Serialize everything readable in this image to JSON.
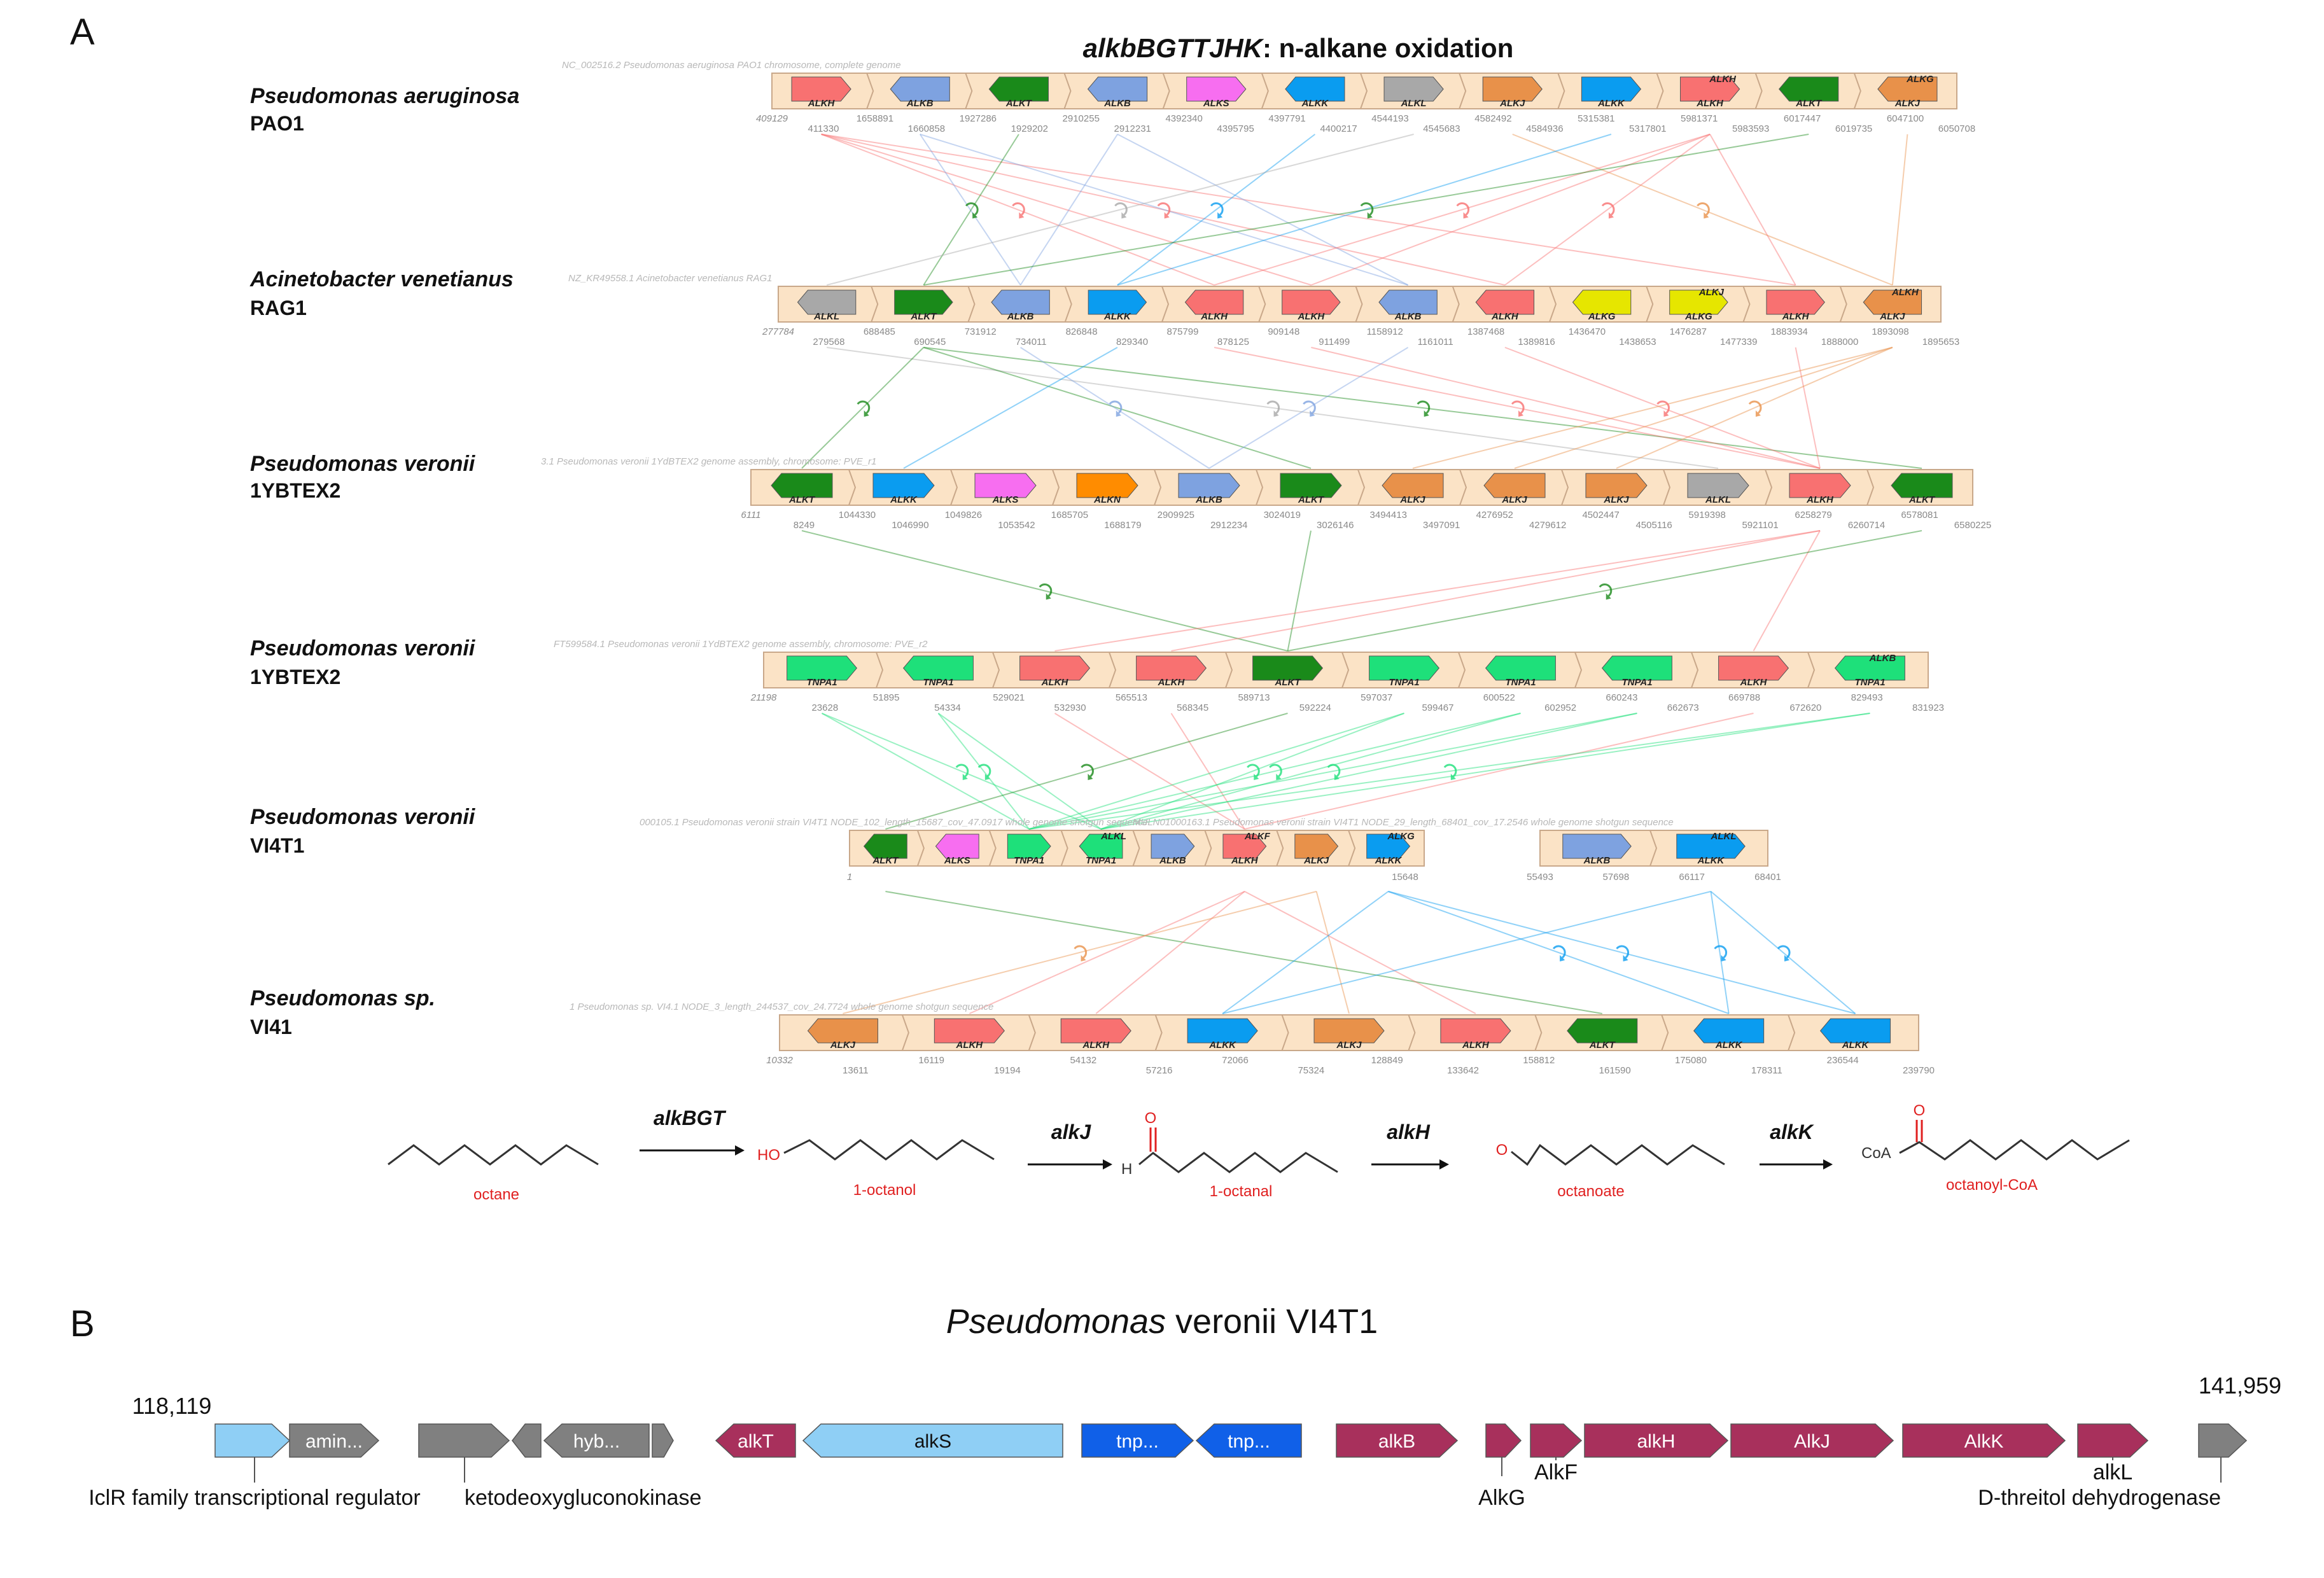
{
  "panel_a": {
    "label": "A",
    "title_italic": "alkbBGTTJHK",
    "title_rest": ":  n-alkane oxidation",
    "tracks": [
      {
        "org": "Pseudomonas aeruginosa",
        "strain": "PAO1",
        "accession": "NC_002516.2 Pseudomonas aeruginosa PAO1 chromosome, complete genome",
        "genes": [
          {
            "label": "ALKH",
            "color": "#f87171",
            "dir": "right"
          },
          {
            "label": "ALKB",
            "color": "#7ea2e0",
            "dir": "left"
          },
          {
            "label": "ALKT",
            "color": "#1a8a1a",
            "dir": "left"
          },
          {
            "label": "ALKB",
            "color": "#7ea2e0",
            "dir": "left"
          },
          {
            "label": "ALKS",
            "color": "#f76ef0",
            "dir": "right"
          },
          {
            "label": "ALKK",
            "color": "#0a9cf0",
            "dir": "left"
          },
          {
            "label": "ALKL",
            "color": "#a8a8a8",
            "dir": "right"
          },
          {
            "label": "ALKJ",
            "color": "#e8914a",
            "dir": "right"
          },
          {
            "label": "ALKK",
            "color": "#0a9cf0",
            "dir": "right"
          },
          {
            "label": "ALKH",
            "color": "#f87171",
            "dir": "right"
          },
          {
            "label": "ALKT",
            "color": "#1a8a1a",
            "dir": "left"
          },
          {
            "label": "ALKJ",
            "color": "#e8914a",
            "dir": "left"
          }
        ],
        "extra": [
          {
            "label": "ALKG"
          },
          {
            "label": "ALKH"
          }
        ],
        "coords": [
          "409129",
          "411330",
          "1658891",
          "1660858",
          "1927286",
          "1929202",
          "2910255",
          "2912231",
          "4392340",
          "4395795",
          "4397791",
          "4400217",
          "4544193",
          "4545683",
          "4582492",
          "4584936",
          "5315381",
          "5317801",
          "5981371",
          "5983593",
          "6017447",
          "6019735",
          "6047100",
          "6050708"
        ]
      },
      {
        "org": "Acinetobacter venetianus",
        "strain": "RAG1",
        "accession": "NZ_KR49558.1 Acinetobacter venetianus RAG1",
        "genes": [
          {
            "label": "ALKL",
            "color": "#a8a8a8",
            "dir": "left"
          },
          {
            "label": "ALKT",
            "color": "#1a8a1a",
            "dir": "right"
          },
          {
            "label": "ALKB",
            "color": "#7ea2e0",
            "dir": "left"
          },
          {
            "label": "ALKK",
            "color": "#0a9cf0",
            "dir": "right"
          },
          {
            "label": "ALKH",
            "color": "#f87171",
            "dir": "left"
          },
          {
            "label": "ALKH",
            "color": "#f87171",
            "dir": "right"
          },
          {
            "label": "ALKB",
            "color": "#7ea2e0",
            "dir": "left"
          },
          {
            "label": "ALKH",
            "color": "#f87171",
            "dir": "left"
          },
          {
            "label": "ALKG",
            "color": "#e6e600",
            "dir": "left"
          },
          {
            "label": "ALKG",
            "color": "#e6e600",
            "dir": "right"
          },
          {
            "label": "ALKH",
            "color": "#f87171",
            "dir": "right"
          },
          {
            "label": "ALKJ",
            "color": "#e8914a",
            "dir": "left"
          }
        ],
        "extra": [
          {
            "label": "ALKH"
          },
          {
            "label": "ALKJ"
          }
        ],
        "coords": [
          "277784",
          "279568",
          "688485",
          "690545",
          "731912",
          "734011",
          "826848",
          "829340",
          "875799",
          "878125",
          "909148",
          "911499",
          "1158912",
          "1161011",
          "1387468",
          "1389816",
          "1436470",
          "1438653",
          "1476287",
          "1477339",
          "1883934",
          "1888000",
          "1893098",
          "1895653"
        ]
      },
      {
        "org": "Pseudomonas veronii",
        "strain": "1YBTEX2",
        "accession": "3.1 Pseudomonas veronii 1YdBTEX2 genome assembly, chromosome: PVE_r1",
        "genes": [
          {
            "label": "ALKT",
            "color": "#1a8a1a",
            "dir": "left"
          },
          {
            "label": "ALKK",
            "color": "#0a9cf0",
            "dir": "right"
          },
          {
            "label": "ALKS",
            "color": "#f76ef0",
            "dir": "right"
          },
          {
            "label": "ALKN",
            "color": "#ff8c00",
            "dir": "right"
          },
          {
            "label": "ALKB",
            "color": "#7ea2e0",
            "dir": "right"
          },
          {
            "label": "ALKT",
            "color": "#1a8a1a",
            "dir": "right"
          },
          {
            "label": "ALKJ",
            "color": "#e8914a",
            "dir": "left"
          },
          {
            "label": "ALKJ",
            "color": "#e8914a",
            "dir": "left"
          },
          {
            "label": "ALKJ",
            "color": "#e8914a",
            "dir": "right"
          },
          {
            "label": "ALKL",
            "color": "#a8a8a8",
            "dir": "right"
          },
          {
            "label": "ALKH",
            "color": "#f87171",
            "dir": "right"
          },
          {
            "label": "ALKT",
            "color": "#1a8a1a",
            "dir": "left"
          }
        ],
        "extra": [],
        "coords": [
          "6111",
          "8249",
          "1044330",
          "1046990",
          "1049826",
          "1053542",
          "1685705",
          "1688179",
          "2909925",
          "2912234",
          "3024019",
          "3026146",
          "3494413",
          "3497091",
          "4276952",
          "4279612",
          "4502447",
          "4505116",
          "5919398",
          "5921101",
          "6258279",
          "6260714",
          "6578081",
          "6580225"
        ]
      },
      {
        "org": "Pseudomonas veronii",
        "strain": "1YBTEX2",
        "accession": "FT599584.1 Pseudomonas veronii 1YdBTEX2 genome assembly, chromosome: PVE_r2",
        "genes": [
          {
            "label": "TNPA1",
            "color": "#1ee07a",
            "dir": "right"
          },
          {
            "label": "TNPA1",
            "color": "#1ee07a",
            "dir": "left"
          },
          {
            "label": "ALKH",
            "color": "#f87171",
            "dir": "right"
          },
          {
            "label": "ALKH",
            "color": "#f87171",
            "dir": "right"
          },
          {
            "label": "ALKT",
            "color": "#1a8a1a",
            "dir": "right"
          },
          {
            "label": "TNPA1",
            "color": "#1ee07a",
            "dir": "right"
          },
          {
            "label": "TNPA1",
            "color": "#1ee07a",
            "dir": "left"
          },
          {
            "label": "TNPA1",
            "color": "#1ee07a",
            "dir": "left"
          },
          {
            "label": "ALKH",
            "color": "#f87171",
            "dir": "right"
          },
          {
            "label": "TNPA1",
            "color": "#1ee07a",
            "dir": "left"
          }
        ],
        "extra": [
          {
            "label": "ALKB"
          }
        ],
        "coords": [
          "21198",
          "23628",
          "51895",
          "54334",
          "529021",
          "532930",
          "565513",
          "568345",
          "589713",
          "592224",
          "597037",
          "599467",
          "600522",
          "602952",
          "660243",
          "662673",
          "669788",
          "672620",
          "829493",
          "831923"
        ]
      },
      {
        "org": "Pseudomonas veronii",
        "strain": "VI4T1",
        "accession": "000105.1 Pseudomonas veronii strain VI4T1 NODE_102_length_15687_cov_47.0917 whole genome shotgun sequence",
        "accession2": "MULN01000163.1 Pseudomonas veronii strain VI4T1 NODE_29_length_68401_cov_17.2546 whole genome shotgun sequence",
        "genes": [
          {
            "label": "ALKT",
            "color": "#1a8a1a",
            "dir": "left"
          },
          {
            "label": "ALKS",
            "color": "#f76ef0",
            "dir": "left"
          },
          {
            "label": "TNPA1",
            "color": "#1ee07a",
            "dir": "right"
          },
          {
            "label": "TNPA1",
            "color": "#1ee07a",
            "dir": "left"
          },
          {
            "label": "ALKB",
            "color": "#7ea2e0",
            "dir": "right"
          },
          {
            "label": "ALKH",
            "color": "#f87171",
            "dir": "right"
          },
          {
            "label": "ALKJ",
            "color": "#e8914a",
            "dir": "right"
          },
          {
            "label": "ALKK",
            "color": "#0a9cf0",
            "dir": "right"
          },
          {
            "label": "ALKB",
            "color": "#7ea2e0",
            "dir": "right"
          },
          {
            "label": "ALKK",
            "color": "#0a9cf0",
            "dir": "right"
          }
        ],
        "extra": [
          {
            "label": "ALKL"
          },
          {
            "label": "ALKG"
          },
          {
            "label": "ALKF"
          },
          {
            "label": "ALKL"
          }
        ],
        "coords": [
          "1",
          "15648",
          "55493",
          "57698",
          "66117",
          "68401"
        ]
      },
      {
        "org": "Pseudomonas sp.",
        "strain": "VI41",
        "accession": "1 Pseudomonas sp. VI4.1 NODE_3_length_244537_cov_24.7724 whole genome shotgun sequence",
        "genes": [
          {
            "label": "ALKJ",
            "color": "#e8914a",
            "dir": "left"
          },
          {
            "label": "ALKH",
            "color": "#f87171",
            "dir": "right"
          },
          {
            "label": "ALKH",
            "color": "#f87171",
            "dir": "right"
          },
          {
            "label": "ALKK",
            "color": "#0a9cf0",
            "dir": "right"
          },
          {
            "label": "ALKJ",
            "color": "#e8914a",
            "dir": "right"
          },
          {
            "label": "ALKH",
            "color": "#f87171",
            "dir": "right"
          },
          {
            "label": "ALKT",
            "color": "#1a8a1a",
            "dir": "left"
          },
          {
            "label": "ALKK",
            "color": "#0a9cf0",
            "dir": "left"
          },
          {
            "label": "ALKK",
            "color": "#0a9cf0",
            "dir": "left"
          }
        ],
        "extra": [],
        "coords": [
          "10332",
          "13611",
          "16119",
          "19194",
          "54132",
          "57216",
          "72066",
          "75324",
          "128849",
          "133642",
          "158812",
          "161590",
          "175080",
          "178311",
          "236544",
          "239790"
        ]
      }
    ],
    "pathway": {
      "compounds": [
        "octane",
        "1-octanol",
        "1-octanal",
        "octanoate",
        "octanoyl-CoA"
      ],
      "enzymes": [
        "alkBGT",
        "alkJ",
        "alkH",
        "alkK"
      ],
      "atoms": {
        "ho": "HO",
        "o": "O",
        "h": "H",
        "coa": "CoA"
      }
    }
  },
  "panel_b": {
    "label": "B",
    "title_italic": "Pseudomonas",
    "title_rest": " veronii VI4T1",
    "start": "118,119",
    "end": "141,959",
    "arrows": [
      {
        "label": "",
        "color": "#8fcff5",
        "dir": "right"
      },
      {
        "label": "amin...",
        "color": "#808080",
        "dir": "right"
      },
      {
        "label": "",
        "color": "#808080",
        "dir": "right"
      },
      {
        "label": "",
        "color": "#808080",
        "dir": "left"
      },
      {
        "label": "hyb...",
        "color": "#808080",
        "dir": "left"
      },
      {
        "label": "",
        "color": "#808080",
        "dir": "right"
      },
      {
        "label": "alkT",
        "color": "#a8305c",
        "dir": "left"
      },
      {
        "label": "alkS",
        "color": "#8fcff5",
        "dir": "left"
      },
      {
        "label": "tnp...",
        "color": "#1060e8",
        "dir": "right"
      },
      {
        "label": "tnp...",
        "color": "#1060e8",
        "dir": "left"
      },
      {
        "label": "alkB",
        "color": "#a8305c",
        "dir": "right"
      },
      {
        "label": "",
        "color": "#a8305c",
        "dir": "right"
      },
      {
        "label": "",
        "color": "#a8305c",
        "dir": "right"
      },
      {
        "label": "alkH",
        "color": "#a8305c",
        "dir": "right"
      },
      {
        "label": "AlkJ",
        "color": "#a8305c",
        "dir": "right"
      },
      {
        "label": "AlkK",
        "color": "#a8305c",
        "dir": "right"
      },
      {
        "label": "",
        "color": "#a8305c",
        "dir": "right"
      },
      {
        "label": "",
        "color": "#808080",
        "dir": "right"
      }
    ],
    "annotations": [
      "IclR family transcriptional regulator",
      "ketodeoxygluconokinase",
      "AlkG",
      "AlkF",
      "alkL",
      "D-threitol dehydrogenase"
    ]
  }
}
